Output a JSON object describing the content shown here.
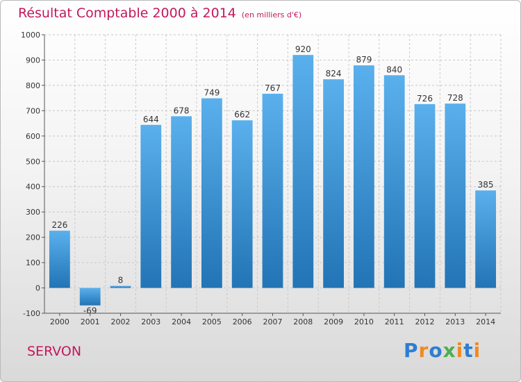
{
  "title": "Résultat Comptable 2000 à 2014",
  "subtitle": "(en milliers d'€)",
  "city": "SERVON",
  "logo": {
    "letters": [
      "P",
      "r",
      "o",
      "x",
      "i",
      "t",
      "i"
    ],
    "colors": [
      "#2e7dd1",
      "#f08a24",
      "#2e7dd1",
      "#4caf50",
      "#f08a24",
      "#2e7dd1",
      "#f08a24"
    ]
  },
  "colors": {
    "title": "#c2185b",
    "bar_top": "#5ab0ec",
    "bar_bottom": "#2274b5"
  },
  "chart_data": {
    "type": "bar",
    "categories": [
      "2000",
      "2001",
      "2002",
      "2003",
      "2004",
      "2005",
      "2006",
      "2007",
      "2008",
      "2009",
      "2010",
      "2011",
      "2012",
      "2013",
      "2014"
    ],
    "values": [
      226,
      -69,
      8,
      644,
      678,
      749,
      662,
      767,
      920,
      824,
      879,
      840,
      726,
      728,
      385
    ],
    "title": "Résultat Comptable 2000 à 2014",
    "ylim": [
      -100,
      1000
    ],
    "yticks": [
      -100,
      0,
      100,
      200,
      300,
      400,
      500,
      600,
      700,
      800,
      900,
      1000
    ],
    "grid": true
  }
}
